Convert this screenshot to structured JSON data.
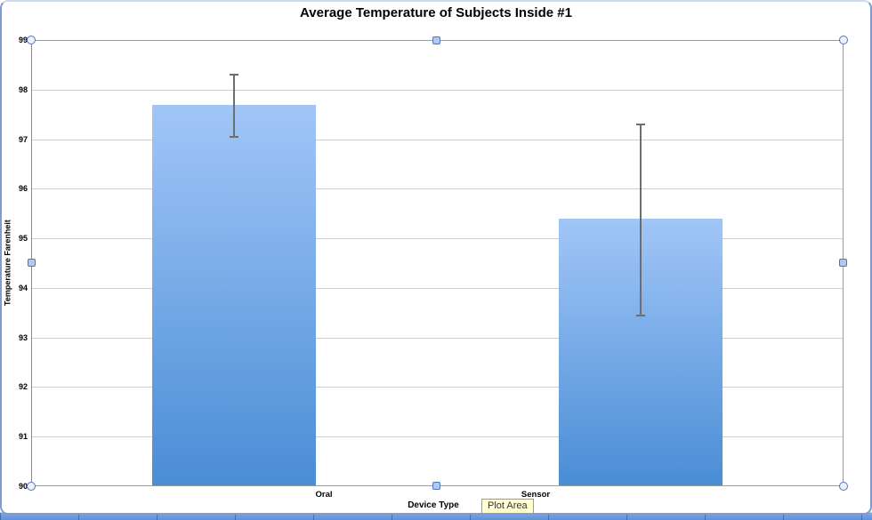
{
  "selection": {
    "tooltip": "Plot Area"
  },
  "chart_data": {
    "type": "bar",
    "title": "Average Temperature of Subjects Inside #1",
    "xlabel": "Device Type",
    "ylabel": "Temperature Farenheit",
    "categories": [
      "Oral",
      "Sensor"
    ],
    "values": [
      97.7,
      95.4
    ],
    "error_bars": {
      "high": [
        98.3,
        97.3
      ],
      "low": [
        97.05,
        93.45
      ]
    },
    "ylim": [
      90,
      99
    ],
    "ytick_step": 1,
    "yticks": [
      "90",
      "91",
      "92",
      "93",
      "94",
      "95",
      "96",
      "97",
      "98",
      "99"
    ],
    "grid": true,
    "legend": "none",
    "bar_gradient_top": "#a1c6f7",
    "bar_gradient_bottom": "#4a8dd6",
    "error_bar_color": "#6e6e6e",
    "gridline_color": "#cdcdcd",
    "axis_color": "#8f8f8f"
  },
  "window": {
    "handle_border_color": "#4f74c0",
    "frame_border_color": "#7e9cda",
    "sheet_strip_color": "#5f92da"
  }
}
